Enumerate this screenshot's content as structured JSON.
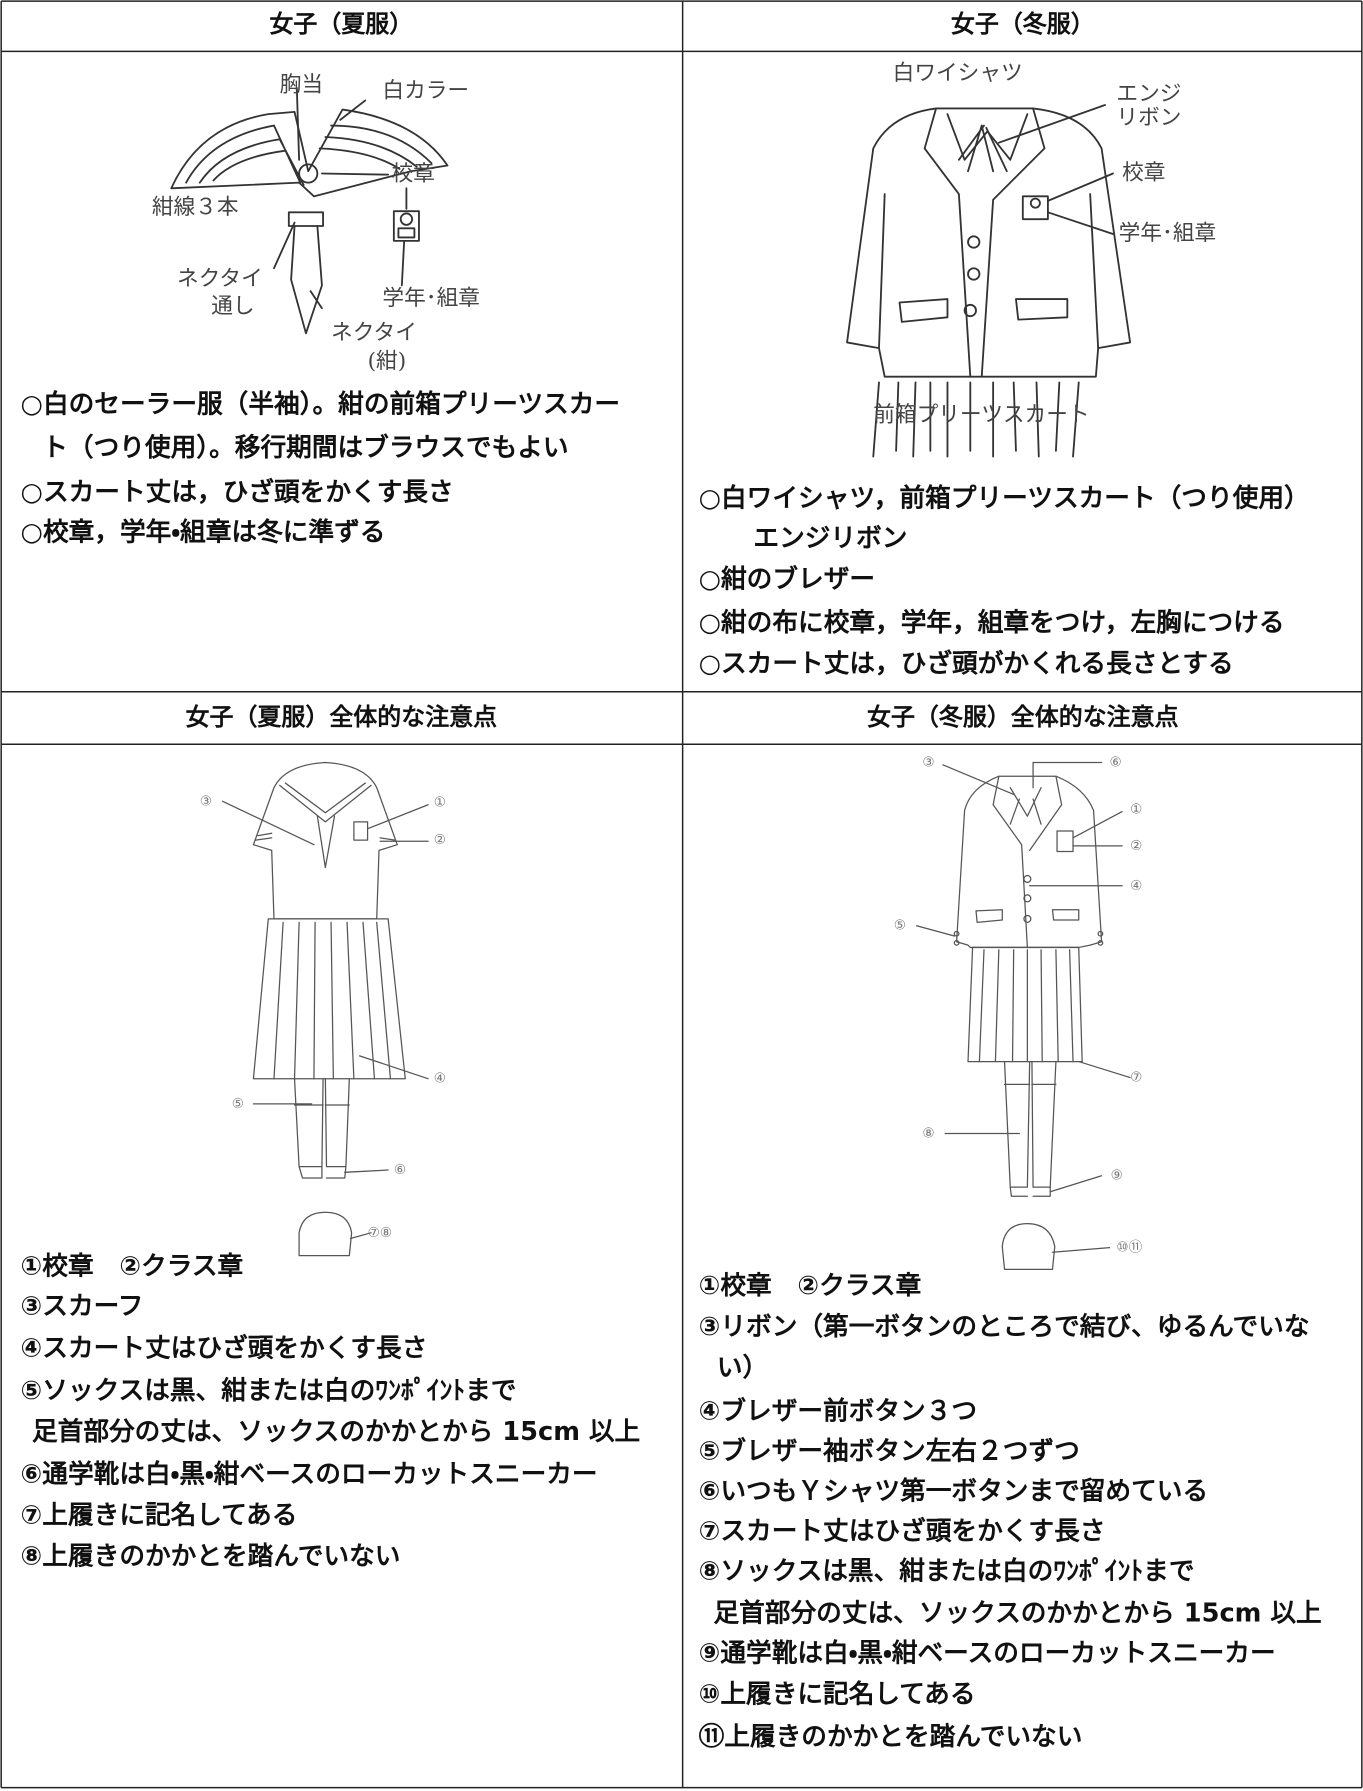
{
  "cells": [
    {
      "header": "女子（夏服）",
      "labels": [
        "胸当",
        "白カラー",
        "紺線３本",
        "校章",
        "ネクタイ",
        "通し",
        "学年･組章",
        "ネクタイ",
        "(紺)"
      ],
      "notes": [
        "○白のセーラー服（半袖）。紺の前箱プリーツスカー",
        "ト（つり使用）。移行期間はブラウスでもよい",
        "○スカート丈は，ひざ頭をかくす長さ",
        "○校章，学年・組章は冬に準ずる"
      ]
    },
    {
      "header": "女子（冬服）",
      "labels": [
        "白ワイシャツ",
        "エンジ",
        "リボン",
        "校章",
        "学年･組章",
        "前箱プリーツスカート"
      ],
      "notes": [
        "○白ワイシャツ，前箱プリーツスカート（つり使用）",
        "エンジリボン",
        "○紺のブレザー",
        "○紺の布に校章，学年，組章をつけ，左胸につける",
        "○スカート丈は，ひざ頭がかくれる長さとする"
      ]
    },
    {
      "header": "女子（夏服）全体的な注意点",
      "labels": [
        "③",
        "①",
        "②",
        "④",
        "⑤",
        "⑥",
        "⑦⑧"
      ],
      "notes": [
        "①校章　②クラス章",
        "③スカーフ",
        "④スカート丈はひざ頭をかくす長さ",
        "⑤ソックスは黒、紺または白のﾜﾝﾎﾟｲﾝﾄまで",
        "足首部分の丈は、ソックスのかかとから 15cm 以上",
        "⑥通学靴は白・黒・紺ベースのローカットスニーカー",
        "⑦上履きに記名してある",
        "⑧上履きのかかとを踏んでいない"
      ]
    },
    {
      "header": "女子（冬服）全体的な注意点",
      "labels": [
        "③",
        "⑥",
        "①",
        "②",
        "④",
        "⑤",
        "⑦",
        "⑧",
        "⑨",
        "⑩⑪"
      ],
      "notes": [
        "①校章　②クラス章",
        "③リボン（第一ボタンのところで結び、ゆるんでいな",
        "い）",
        "④ブレザー前ボタン３つ",
        "⑤ブレザー袖ボタン左右２つずつ",
        "⑥いつもＹシャツ第一ボタンまで留めている",
        "⑦スカート丈はひざ頭をかくす長さ",
        "⑧ソックスは黒、紺または白のﾜﾝﾎﾟｲﾝﾄまで",
        "足首部分の丈は、ソックスのかかとから 15cm 以上",
        "⑨通学靴は白・黒・紺ベースのローカットスニーカー",
        "⑩上履きに記名してある",
        "⑪上履きのかかとを踏んでいない"
      ]
    }
  ]
}
